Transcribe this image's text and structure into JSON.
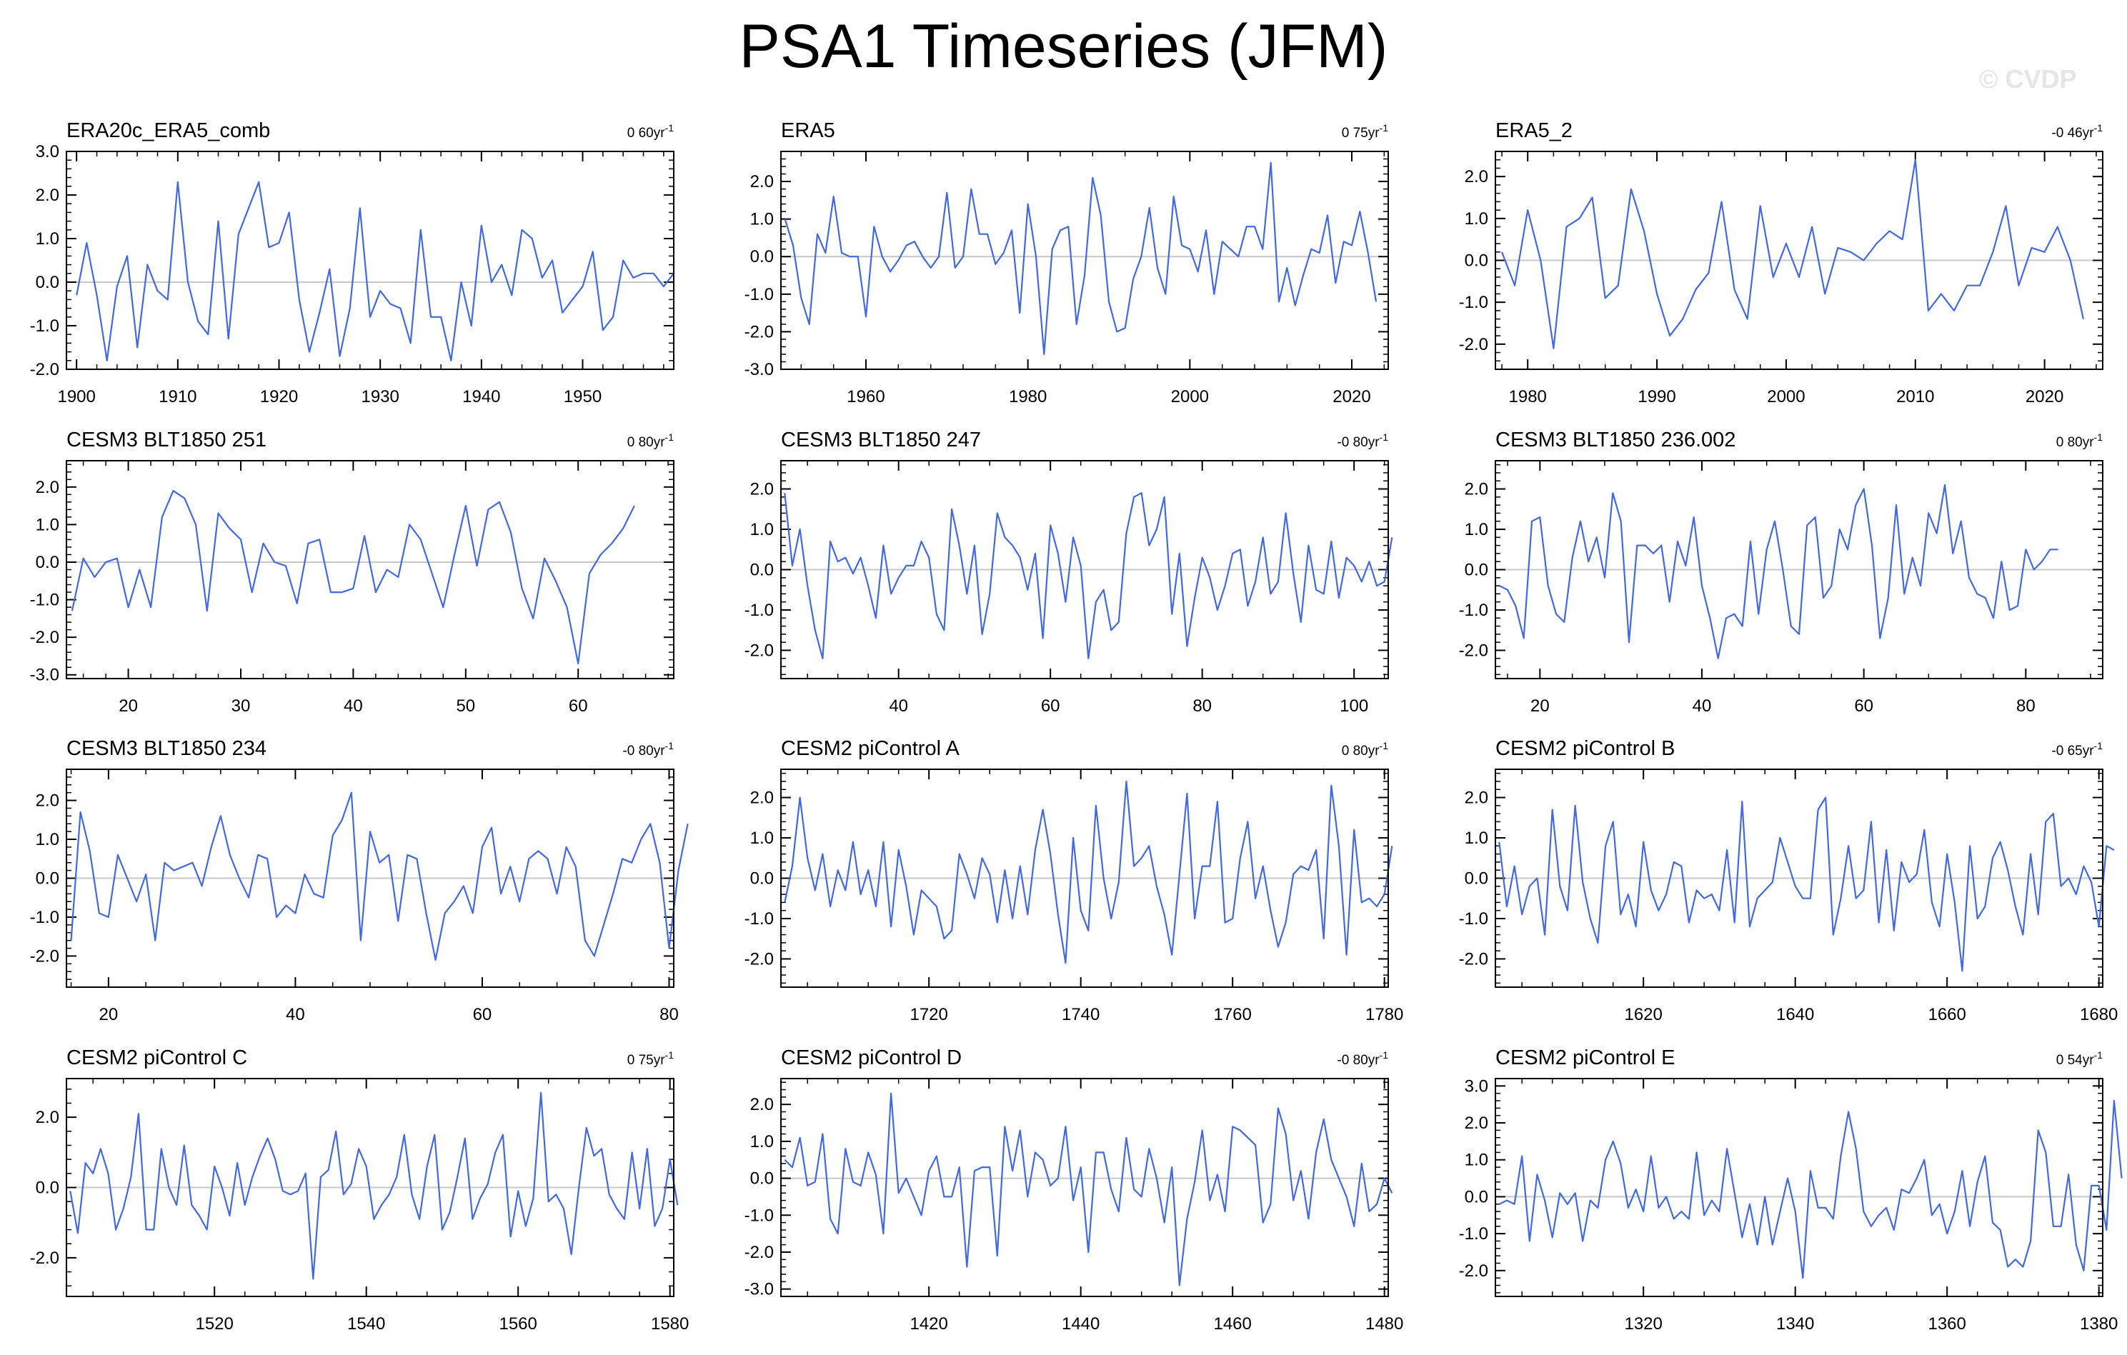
{
  "title": "PSA1 Timeseries (JFM)",
  "watermark": "© CVDP",
  "colors": {
    "line": "#4169e1",
    "zero": "#c8c8c8",
    "axis": "#000000"
  },
  "chart_data": [
    {
      "type": "line",
      "title": "ERA20c_ERA5_comb",
      "trend": "0 60yr",
      "xlim": [
        1899,
        1959
      ],
      "ylim": [
        -2.0,
        3.0
      ],
      "yticks": [
        -2.0,
        -1.0,
        0.0,
        1.0,
        2.0,
        3.0
      ],
      "xticks": [
        1900,
        1910,
        1920,
        1930,
        1940,
        1950
      ],
      "x_start": 1900,
      "x_step": 1,
      "values": [
        -0.3,
        0.9,
        -0.3,
        -1.8,
        -0.1,
        0.6,
        -1.5,
        0.4,
        -0.2,
        -0.4,
        2.3,
        0.0,
        -0.9,
        -1.2,
        1.4,
        -1.3,
        1.1,
        1.7,
        2.3,
        0.8,
        0.9,
        1.6,
        -0.4,
        -1.6,
        -0.7,
        0.3,
        -1.7,
        -0.6,
        1.7,
        -0.8,
        -0.2,
        -0.5,
        -0.6,
        -1.4,
        1.2,
        -0.8,
        -0.8,
        -1.8,
        0.0,
        -1.0,
        1.3,
        0.0,
        0.4,
        -0.3,
        1.2,
        1.0,
        0.1,
        0.5,
        -0.7,
        -0.4,
        -0.1,
        0.7,
        -1.1,
        -0.8,
        0.5,
        0.1,
        0.2,
        0.2,
        -0.1,
        0.2
      ]
    },
    {
      "type": "line",
      "title": "ERA5",
      "trend": "0 75yr",
      "xlim": [
        1949.5,
        2024.5
      ],
      "ylim": [
        -3.0,
        2.8
      ],
      "yticks": [
        -3.0,
        -2.0,
        -1.0,
        0.0,
        1.0,
        2.0
      ],
      "xticks": [
        1960,
        1980,
        2000,
        2020
      ],
      "x_start": 1950,
      "x_step": 1,
      "values": [
        1.0,
        0.3,
        -1.1,
        -1.8,
        0.6,
        0.1,
        1.6,
        0.1,
        0.0,
        0.0,
        -1.6,
        0.8,
        0.0,
        -0.4,
        -0.1,
        0.3,
        0.4,
        0.0,
        -0.3,
        0.0,
        1.7,
        -0.3,
        0.0,
        1.8,
        0.6,
        0.6,
        -0.2,
        0.1,
        0.7,
        -1.5,
        1.4,
        0.0,
        -2.6,
        0.2,
        0.7,
        0.8,
        -1.8,
        -0.5,
        2.1,
        1.1,
        -1.2,
        -2.0,
        -1.9,
        -0.6,
        0.0,
        1.3,
        -0.3,
        -1.0,
        1.6,
        0.3,
        0.2,
        -0.4,
        0.7,
        -1.0,
        0.4,
        0.2,
        0.0,
        0.8,
        0.8,
        0.2,
        2.5,
        -1.2,
        -0.3,
        -1.3,
        -0.5,
        0.2,
        0.1,
        1.1,
        -0.7,
        0.4,
        0.3,
        1.2,
        0.1,
        -1.2
      ]
    },
    {
      "type": "line",
      "title": "ERA5_2",
      "trend": "-0 46yr",
      "xlim": [
        1977.5,
        2024.5
      ],
      "ylim": [
        -2.6,
        2.6
      ],
      "yticks": [
        -2.0,
        -1.0,
        0.0,
        1.0,
        2.0
      ],
      "xticks": [
        1980,
        1990,
        2000,
        2010,
        2020
      ],
      "x_start": 1978,
      "x_step": 1,
      "values": [
        0.2,
        -0.6,
        1.2,
        0.0,
        -2.1,
        0.8,
        1.0,
        1.5,
        -0.9,
        -0.6,
        1.7,
        0.7,
        -0.8,
        -1.8,
        -1.4,
        -0.7,
        -0.3,
        1.4,
        -0.7,
        -1.4,
        1.3,
        -0.4,
        0.4,
        -0.4,
        0.8,
        -0.8,
        0.3,
        0.2,
        0.0,
        0.4,
        0.7,
        0.5,
        2.4,
        -1.2,
        -0.8,
        -1.2,
        -0.6,
        -0.6,
        0.2,
        1.3,
        -0.6,
        0.3,
        0.2,
        0.8,
        0.0,
        -1.4
      ]
    },
    {
      "type": "line",
      "title": "CESM3 BLT1850 251",
      "trend": "0 80yr",
      "xlim": [
        14.5,
        68.5
      ],
      "ylim": [
        -3.1,
        2.7
      ],
      "yticks": [
        -3.0,
        -2.0,
        -1.0,
        0.0,
        1.0,
        2.0
      ],
      "xticks": [
        20,
        30,
        40,
        50,
        60
      ],
      "x_start": 15,
      "x_step": 1,
      "values": [
        -1.3,
        0.1,
        -0.4,
        0.0,
        0.1,
        -1.2,
        -0.2,
        -1.2,
        1.2,
        1.9,
        1.7,
        1.0,
        -1.3,
        1.3,
        0.9,
        0.6,
        -0.8,
        0.5,
        0.0,
        -0.1,
        -1.1,
        0.5,
        0.6,
        -0.8,
        -0.8,
        -0.7,
        0.7,
        -0.8,
        -0.2,
        -0.4,
        1.0,
        0.6,
        -0.3,
        -1.2,
        0.2,
        1.5,
        -0.1,
        1.4,
        1.6,
        0.8,
        -0.7,
        -1.5,
        0.1,
        -0.5,
        -1.2,
        -2.7,
        -0.3,
        0.2,
        0.5,
        0.9,
        1.5
      ]
    },
    {
      "type": "line",
      "title": "CESM3 BLT1850 247",
      "trend": "-0 80yr",
      "xlim": [
        24.5,
        104.5
      ],
      "ylim": [
        -2.7,
        2.7
      ],
      "yticks": [
        -2.0,
        -1.0,
        0.0,
        1.0,
        2.0
      ],
      "xticks": [
        40,
        60,
        80,
        100
      ],
      "x_start": 25,
      "x_step": 1,
      "values": [
        1.9,
        0.1,
        1.0,
        -0.4,
        -1.5,
        -2.2,
        0.7,
        0.2,
        0.3,
        -0.1,
        0.3,
        -0.4,
        -1.2,
        0.6,
        -0.6,
        -0.2,
        0.1,
        0.1,
        0.7,
        0.3,
        -1.1,
        -1.5,
        1.5,
        0.6,
        -0.6,
        0.6,
        -1.6,
        -0.6,
        1.4,
        0.8,
        0.6,
        0.3,
        -0.5,
        0.4,
        -1.7,
        1.1,
        0.4,
        -0.8,
        0.8,
        0.1,
        -2.2,
        -0.8,
        -0.5,
        -1.5,
        -1.3,
        0.9,
        1.8,
        1.9,
        0.6,
        1.0,
        1.8,
        -1.1,
        0.4,
        -1.9,
        -0.7,
        0.3,
        -0.2,
        -1.0,
        -0.4,
        0.4,
        0.5,
        -0.9,
        -0.3,
        0.8,
        -0.6,
        -0.3,
        1.4,
        -0.1,
        -1.3,
        0.6,
        -0.5,
        -0.6,
        0.7,
        -0.7,
        0.3,
        0.1,
        -0.3,
        0.2,
        -0.4,
        -0.3,
        0.8
      ]
    },
    {
      "type": "line",
      "title": "CESM3 BLT1850 236.002",
      "trend": "0 80yr",
      "xlim": [
        14.5,
        89.5
      ],
      "ylim": [
        -2.7,
        2.7
      ],
      "yticks": [
        -2.0,
        -1.0,
        0.0,
        1.0,
        2.0
      ],
      "xticks": [
        20,
        40,
        60,
        80
      ],
      "x_start": 15,
      "x_step": 1,
      "values": [
        -0.4,
        -0.5,
        -0.9,
        -1.7,
        1.2,
        1.3,
        -0.4,
        -1.1,
        -1.3,
        0.3,
        1.2,
        0.2,
        0.8,
        -0.2,
        1.9,
        1.2,
        -1.8,
        0.6,
        0.6,
        0.4,
        0.6,
        -0.8,
        0.7,
        0.1,
        1.3,
        -0.4,
        -1.2,
        -2.2,
        -1.2,
        -1.1,
        -1.4,
        0.7,
        -1.1,
        0.5,
        1.2,
        0.0,
        -1.4,
        -1.6,
        1.1,
        1.3,
        -0.7,
        -0.4,
        1.0,
        0.5,
        1.6,
        2.0,
        0.6,
        -1.7,
        -0.7,
        1.6,
        -0.6,
        0.3,
        -0.4,
        1.4,
        0.9,
        2.1,
        0.4,
        1.2,
        -0.2,
        -0.6,
        -0.7,
        -1.2,
        0.2,
        -1.0,
        -0.9,
        0.5,
        0.0,
        0.2,
        0.5,
        0.5
      ]
    },
    {
      "type": "line",
      "title": "CESM3 BLT1850 234",
      "trend": "-0 80yr",
      "xlim": [
        15.5,
        80.5
      ],
      "ylim": [
        -2.8,
        2.8
      ],
      "yticks": [
        -2.0,
        -1.0,
        0.0,
        1.0,
        2.0
      ],
      "xticks": [
        20,
        40,
        60,
        80
      ],
      "x_start": 16,
      "x_step": 1,
      "values": [
        -1.6,
        1.7,
        0.7,
        -0.9,
        -1.0,
        0.6,
        0.0,
        -0.6,
        0.1,
        -1.6,
        0.4,
        0.2,
        0.3,
        0.4,
        -0.2,
        0.8,
        1.6,
        0.6,
        0.0,
        -0.5,
        0.6,
        0.5,
        -1.0,
        -0.7,
        -0.9,
        0.1,
        -0.4,
        -0.5,
        1.1,
        1.5,
        2.2,
        -1.6,
        1.2,
        0.4,
        0.6,
        -1.1,
        0.6,
        0.5,
        -0.9,
        -2.1,
        -0.9,
        -0.6,
        -0.2,
        -0.9,
        0.8,
        1.3,
        -0.4,
        0.3,
        -0.6,
        0.5,
        0.7,
        0.5,
        -0.4,
        0.8,
        0.3,
        -1.6,
        -2.0,
        -1.2,
        -0.4,
        0.5,
        0.4,
        1.0,
        1.4,
        0.4,
        -1.8,
        0.2,
        1.4
      ]
    },
    {
      "type": "line",
      "title": "CESM2 piControl A",
      "trend": "0 80yr",
      "xlim": [
        1700.5,
        1780.5
      ],
      "ylim": [
        -2.7,
        2.7
      ],
      "yticks": [
        -2.0,
        -1.0,
        0.0,
        1.0,
        2.0
      ],
      "xticks": [
        1720,
        1740,
        1760,
        1780
      ],
      "x_start": 1701,
      "x_step": 1,
      "values": [
        -0.6,
        0.3,
        2.0,
        0.5,
        -0.3,
        0.6,
        -0.7,
        0.2,
        -0.3,
        0.9,
        -0.4,
        0.2,
        -0.7,
        0.9,
        -1.2,
        0.7,
        -0.2,
        -1.4,
        -0.3,
        -0.5,
        -0.7,
        -1.5,
        -1.3,
        0.6,
        0.1,
        -0.5,
        0.5,
        0.1,
        -1.1,
        0.2,
        -1.0,
        0.3,
        -0.9,
        0.7,
        1.7,
        0.6,
        -0.9,
        -2.1,
        1.0,
        -0.8,
        -1.3,
        1.8,
        0.0,
        -1.0,
        -0.1,
        2.4,
        0.3,
        0.5,
        0.8,
        -0.2,
        -0.9,
        -1.9,
        0.1,
        2.1,
        -1.0,
        0.3,
        0.3,
        1.9,
        -1.1,
        -1.0,
        0.5,
        1.4,
        -0.5,
        0.3,
        -0.8,
        -1.7,
        -1.1,
        0.1,
        0.3,
        0.2,
        0.7,
        -1.5,
        2.3,
        0.8,
        -1.9,
        1.2,
        -0.6,
        -0.5,
        -0.7,
        -0.4,
        0.8
      ]
    },
    {
      "type": "line",
      "title": "CESM2 piControl B",
      "trend": "-0 65yr",
      "xlim": [
        1600.5,
        1680.5
      ],
      "ylim": [
        -2.7,
        2.7
      ],
      "yticks": [
        -2.0,
        -1.0,
        0.0,
        1.0,
        2.0
      ],
      "xticks": [
        1620,
        1640,
        1660,
        1680
      ],
      "x_start": 1601,
      "x_step": 1,
      "values": [
        0.9,
        -0.7,
        0.3,
        -0.9,
        -0.2,
        0.0,
        -1.4,
        1.7,
        -0.2,
        -0.8,
        1.8,
        -0.1,
        -1.0,
        -1.6,
        0.8,
        1.4,
        -0.9,
        -0.4,
        -1.2,
        0.9,
        -0.3,
        -0.8,
        -0.4,
        0.4,
        0.3,
        -1.1,
        -0.3,
        -0.5,
        -0.4,
        -0.8,
        0.7,
        -1.1,
        1.9,
        -1.2,
        -0.5,
        -0.3,
        -0.1,
        1.0,
        0.4,
        -0.2,
        -0.5,
        -0.5,
        1.7,
        2.0,
        -1.4,
        -0.5,
        0.8,
        -0.5,
        -0.3,
        1.4,
        -1.1,
        0.7,
        -1.3,
        0.4,
        -0.1,
        0.1,
        1.2,
        -0.6,
        -1.2,
        0.6,
        -0.6,
        -2.3,
        0.8,
        -1.0,
        -0.7,
        0.5,
        0.9,
        0.2,
        -0.7,
        -1.4,
        0.6,
        -0.9,
        1.4,
        1.6,
        -0.2,
        0.0,
        -0.4,
        0.3,
        -0.1,
        -1.2,
        0.8,
        0.7
      ]
    },
    {
      "type": "line",
      "title": "CESM2 piControl C",
      "trend": "0 75yr",
      "xlim": [
        1500.5,
        1580.5
      ],
      "ylim": [
        -3.1,
        3.1
      ],
      "yticks": [
        -2.0,
        0.0,
        2.0
      ],
      "xticks": [
        1520,
        1540,
        1560,
        1580
      ],
      "x_start": 1501,
      "x_step": 1,
      "values": [
        -0.1,
        -1.3,
        0.7,
        0.4,
        1.1,
        0.4,
        -1.2,
        -0.6,
        0.3,
        2.1,
        -1.2,
        -1.2,
        1.1,
        0.0,
        -0.5,
        1.2,
        -0.5,
        -0.8,
        -1.2,
        0.6,
        0.0,
        -0.8,
        0.7,
        -0.5,
        0.3,
        0.9,
        1.4,
        0.8,
        -0.1,
        -0.2,
        -0.1,
        0.4,
        -2.6,
        0.3,
        0.5,
        1.6,
        -0.2,
        0.1,
        1.1,
        0.6,
        -0.9,
        -0.5,
        -0.2,
        0.3,
        1.5,
        -0.2,
        -0.9,
        0.6,
        1.5,
        -1.2,
        -0.7,
        0.3,
        1.4,
        -0.9,
        -0.3,
        0.1,
        1.0,
        1.5,
        -1.4,
        -0.1,
        -1.1,
        -0.3,
        2.7,
        -0.4,
        -0.2,
        -0.6,
        -1.9,
        0.0,
        1.7,
        0.9,
        1.1,
        -0.2,
        -0.6,
        -0.9,
        1.0,
        -0.6,
        1.1,
        -1.1,
        -0.6,
        0.8,
        -0.5
      ]
    },
    {
      "type": "line",
      "title": "CESM2 piControl D",
      "trend": "-0 80yr",
      "xlim": [
        1400.5,
        1480.5
      ],
      "ylim": [
        -3.2,
        2.7
      ],
      "yticks": [
        -3.0,
        -2.0,
        -1.0,
        0.0,
        1.0,
        2.0
      ],
      "xticks": [
        1420,
        1440,
        1460,
        1480
      ],
      "x_start": 1401,
      "x_step": 1,
      "values": [
        0.5,
        0.3,
        1.1,
        -0.2,
        -0.1,
        1.2,
        -1.1,
        -1.5,
        0.8,
        -0.1,
        -0.2,
        0.7,
        0.1,
        -1.5,
        2.3,
        -0.4,
        0.0,
        -0.5,
        -1.0,
        0.2,
        0.6,
        -0.5,
        -0.5,
        0.3,
        -2.4,
        0.2,
        0.3,
        0.3,
        -2.1,
        1.4,
        0.2,
        1.3,
        -0.5,
        0.7,
        0.5,
        -0.2,
        0.0,
        1.4,
        -0.6,
        0.3,
        -2.0,
        0.7,
        0.7,
        -0.3,
        -0.9,
        1.1,
        -0.3,
        -0.5,
        0.8,
        0.0,
        -1.2,
        0.3,
        -2.9,
        -1.1,
        -0.1,
        1.3,
        -0.6,
        0.1,
        -0.9,
        1.4,
        1.3,
        1.1,
        0.9,
        -1.2,
        -0.7,
        1.9,
        1.2,
        -0.6,
        0.2,
        -1.1,
        0.7,
        1.6,
        0.5,
        0.0,
        -0.5,
        -1.3,
        0.4,
        -0.9,
        -0.7,
        0.0,
        -0.4
      ]
    },
    {
      "type": "line",
      "title": "CESM2 piControl E",
      "trend": "0 54yr",
      "xlim": [
        1300.5,
        1380.5
      ],
      "ylim": [
        -2.7,
        3.2
      ],
      "yticks": [
        -2.0,
        -1.0,
        0.0,
        1.0,
        2.0,
        3.0
      ],
      "xticks": [
        1320,
        1340,
        1360,
        1380
      ],
      "x_start": 1301,
      "x_step": 1,
      "values": [
        -0.2,
        -0.1,
        -0.2,
        1.1,
        -1.2,
        0.6,
        -0.1,
        -1.1,
        0.1,
        -0.2,
        0.1,
        -1.2,
        -0.1,
        -0.3,
        1.0,
        1.5,
        0.9,
        -0.3,
        0.2,
        -0.4,
        1.1,
        -0.3,
        0.0,
        -0.6,
        -0.4,
        -0.6,
        1.2,
        -0.5,
        -0.1,
        -0.4,
        1.3,
        0.1,
        -1.1,
        -0.2,
        -1.3,
        0.0,
        -1.3,
        -0.4,
        0.5,
        -0.4,
        -2.2,
        0.7,
        -0.3,
        -0.3,
        -0.6,
        1.1,
        2.3,
        1.3,
        -0.4,
        -0.8,
        -0.5,
        -0.3,
        -0.9,
        0.2,
        0.1,
        0.5,
        1.0,
        -0.5,
        -0.2,
        -1.0,
        -0.4,
        0.7,
        -0.8,
        0.4,
        1.1,
        -0.7,
        -0.9,
        -1.9,
        -1.7,
        -1.9,
        -1.2,
        1.8,
        1.2,
        -0.8,
        -0.8,
        0.6,
        -1.3,
        -2.0,
        0.3,
        0.3,
        -0.9,
        2.6,
        0.5
      ]
    }
  ]
}
